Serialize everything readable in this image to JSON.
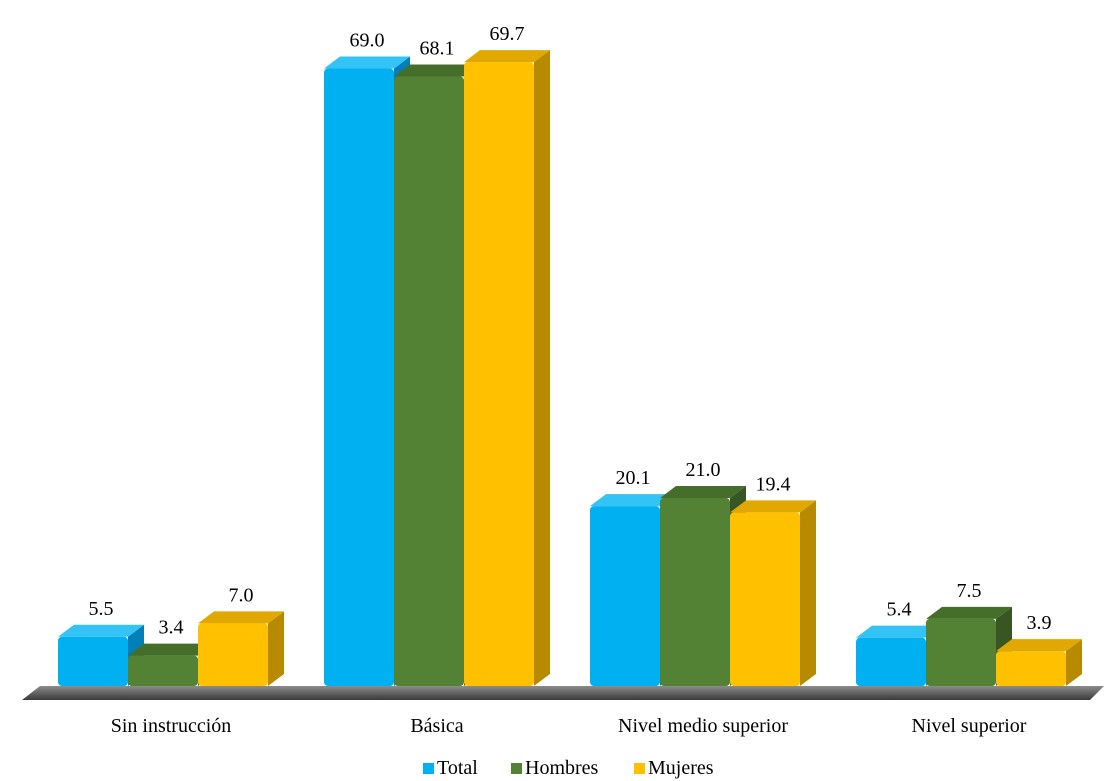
{
  "chart_data": {
    "type": "bar",
    "title": "",
    "xlabel": "",
    "ylabel": "",
    "categories": [
      "Sin instrucción",
      "Básica",
      "Nivel medio superior",
      "Nivel superior"
    ],
    "series": [
      {
        "name": "Total",
        "values": [
          5.5,
          69.0,
          20.1,
          5.4
        ],
        "labels": [
          "5.5",
          "69.0",
          "20.1",
          "5.4"
        ],
        "color": "#00B0F0",
        "side_color": "#0080B8",
        "top_color": "#33C3F5"
      },
      {
        "name": "Hombres",
        "values": [
          3.4,
          68.1,
          21.0,
          7.5
        ],
        "labels": [
          "3.4",
          "68.1",
          "21.0",
          "7.5"
        ],
        "color": "#548235",
        "side_color": "#375623",
        "top_color": "#456E2A"
      },
      {
        "name": "Mujeres",
        "values": [
          7.0,
          69.7,
          19.4,
          3.9
        ],
        "labels": [
          "7.0",
          "69.7",
          "19.4",
          "3.9"
        ],
        "color": "#FFC000",
        "side_color": "#B88A00",
        "top_color": "#E0A800"
      }
    ],
    "ylim": [
      0,
      72
    ],
    "grid": false,
    "legend": "bottom",
    "style": "3d-bars"
  }
}
